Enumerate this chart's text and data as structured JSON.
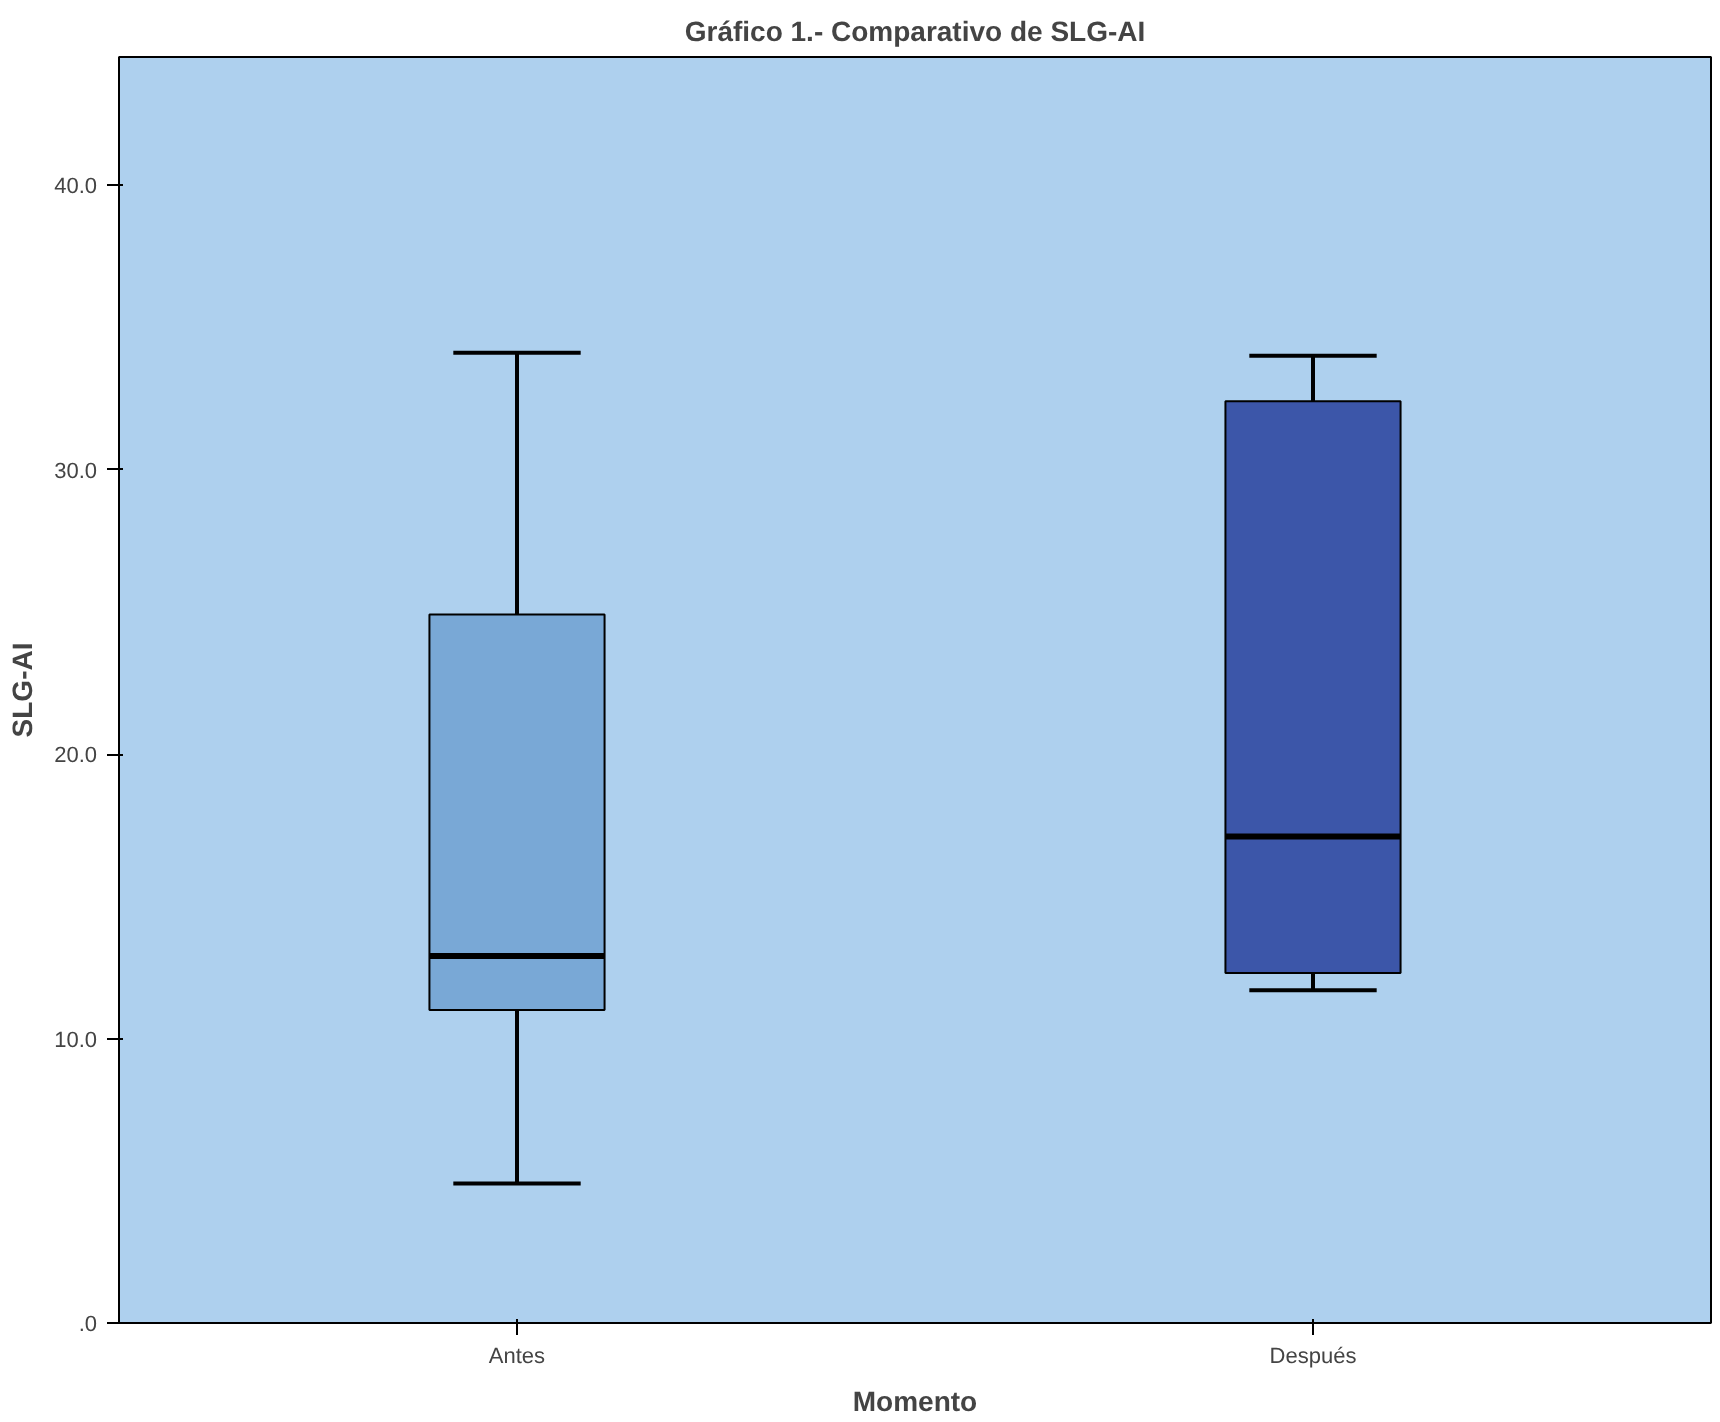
{
  "chart_data": {
    "type": "box",
    "title": "Gráfico 1.- Comparativo de SLG-AI",
    "xlabel": "Momento",
    "ylabel": "SLG-AI",
    "categories": [
      "Antes",
      "Después"
    ],
    "boxes": [
      {
        "low": 4.9,
        "q1": 11.0,
        "median": 12.9,
        "q3": 24.9,
        "high": 34.1
      },
      {
        "low": 11.7,
        "q1": 12.3,
        "median": 17.1,
        "q3": 32.4,
        "high": 34.0
      }
    ],
    "colors": [
      "#79a8d6",
      "#3c56a9"
    ],
    "ylim": [
      0,
      44.5
    ],
    "yticks": [
      {
        "value": 0,
        "label": ".0"
      },
      {
        "value": 10,
        "label": "10.0"
      },
      {
        "value": 20,
        "label": "20.0"
      },
      {
        "value": 30,
        "label": "30.0"
      },
      {
        "value": 40,
        "label": "40.0"
      }
    ],
    "grid": false
  }
}
